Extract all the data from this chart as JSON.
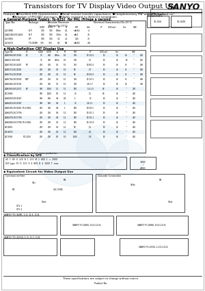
{
  "title": "Transistors for TV Display Video Output Use",
  "logo": "SANYO",
  "page_color": "#ffffff",
  "features_line1": "Features ●Excellent hFE characteristics. ●Small reverse transfer capacitance. ●Complementary PNP and NPN types.",
  "features_line2": "●Adoption of MIL/SED processes. ●Highly resistant to dielectric breakdown.",
  "footer": "These specifications are subject to change without notice.",
  "watermark_color": "#b8d4e8",
  "t1_rows": [
    [
      "2SC3880",
      "N P",
      "100",
      "100",
      "500m",
      "0.1",
      "mA/60",
      "4",
      "-",
      "15",
      "40",
      "~",
      "300"
    ],
    [
      "2SA1548/2SC4446",
      "N P",
      "180",
      "180",
      "300m",
      "0.1",
      "mA/1",
      "70",
      "-",
      "10",
      "30",
      "~",
      "400"
    ],
    [
      "2SC3850",
      "P,P",
      "180",
      "160",
      "1.5",
      "1.1",
      "120",
      "30",
      "-",
      "10",
      "300",
      "~",
      "600"
    ],
    [
      "2SC4073",
      "TO-92M8",
      "300",
      "300",
      "0.5",
      "M4",
      "mA/60",
      "4.8",
      "-",
      "40",
      "45",
      "~",
      "300"
    ]
  ],
  "t2_rows": [
    [
      "2SA3580/2SC3506",
      "CF",
      "70",
      "400",
      "400m",
      "0.2",
      "700",
      "10.1/1.0",
      "10",
      "30",
      "40",
      "~",
      "250"
    ],
    [
      "2SA411/2SC3501",
      "",
      "70",
      "400",
      "400m",
      "0.2",
      "700",
      "1.7",
      "10",
      "40",
      "60",
      "~",
      "250"
    ],
    [
      "2SA3780/2SC4407",
      "NP",
      "200",
      "200",
      "0.2",
      "1.0",
      "450",
      "10.8/1.0",
      "10",
      "40",
      "45",
      "~",
      "400"
    ],
    [
      "2SA3571/2SC4505",
      "",
      "200",
      "200",
      "0.2",
      "1.0",
      "90",
      "1.T",
      "10",
      "40",
      "45",
      "~",
      "400"
    ],
    [
      "2SA3716/2SC4508",
      "",
      "200",
      "200",
      "0.2",
      "1.5",
      "90",
      "10.0/1.0",
      "10",
      "40",
      "45",
      "~",
      "400"
    ],
    [
      "2SA3781/2SC4509",
      "NOP",
      "200",
      "200",
      "0.2",
      "1.5",
      "350",
      "10.1/1.5",
      "10",
      "40",
      "45",
      "~",
      "400"
    ],
    [
      "2SA3482/2SC4191",
      "",
      "200",
      "200",
      "0.1",
      "1.5",
      "350",
      "2.6/1.7",
      "10",
      "40",
      "40",
      "~",
      "330"
    ],
    [
      "2SA5056/2SC4372",
      "AP",
      "300",
      "1000",
      "1.5",
      "1.5",
      "150",
      "1.1/1.0",
      "80",
      "40",
      "~",
      "200",
      ""
    ],
    [
      "2SC2886",
      "",
      "300",
      "1200",
      "0.5",
      "1.1",
      "70",
      "1.5",
      "80",
      "40",
      "~",
      "250",
      ""
    ],
    [
      "2SA4650/2SC4587",
      "",
      "300",
      "600",
      "0.8",
      "0.8",
      "1.",
      "70",
      "10",
      "40",
      "~",
      "250",
      ""
    ],
    [
      "2SA4451/2SC4387",
      "",
      "300",
      "600",
      "0.8",
      "1.",
      "70",
      "2.1/1.1",
      "10",
      "40",
      "~",
      "250",
      ""
    ],
    [
      "2SA4381/2SC4461",
      "TO-1886L",
      "270",
      "200",
      "0.8",
      "1.",
      "160",
      "10.0/1.5",
      "10",
      "40",
      "~",
      "250",
      ""
    ],
    [
      "2SA4475/2SC3796",
      "",
      "200",
      "200",
      "0.8",
      "1.2",
      "150",
      "10.3/1.1",
      "10",
      "40",
      "~",
      "250",
      ""
    ],
    [
      "2SA4478/2SC3798",
      "",
      "200",
      "200",
      "0.8",
      "1.2",
      "150",
      "10.3/1.1",
      "10",
      "40",
      "~",
      "250",
      ""
    ],
    [
      "2SA4488/2SC3788",
      "TO-1888L",
      "200",
      "200",
      "0.2",
      "1.1",
      "150",
      "10.1/1.8",
      "10",
      "40",
      "~",
      "250",
      ""
    ],
    [
      "2SC4853",
      "",
      "200",
      "200",
      "0.2",
      "1.2",
      "90",
      "1.5",
      "10",
      "40",
      "~",
      "250",
      ""
    ],
    [
      "2SC4876",
      "",
      "200",
      "200",
      "0.2",
      "1.1",
      "100",
      "1.0",
      "10",
      "40",
      "~",
      "250",
      ""
    ],
    [
      "2SC3588",
      "TO-2050",
      "200",
      "200",
      "0.5",
      "1.0",
      "1E10",
      "1.8",
      "10",
      "40",
      "~",
      "250",
      ""
    ]
  ]
}
